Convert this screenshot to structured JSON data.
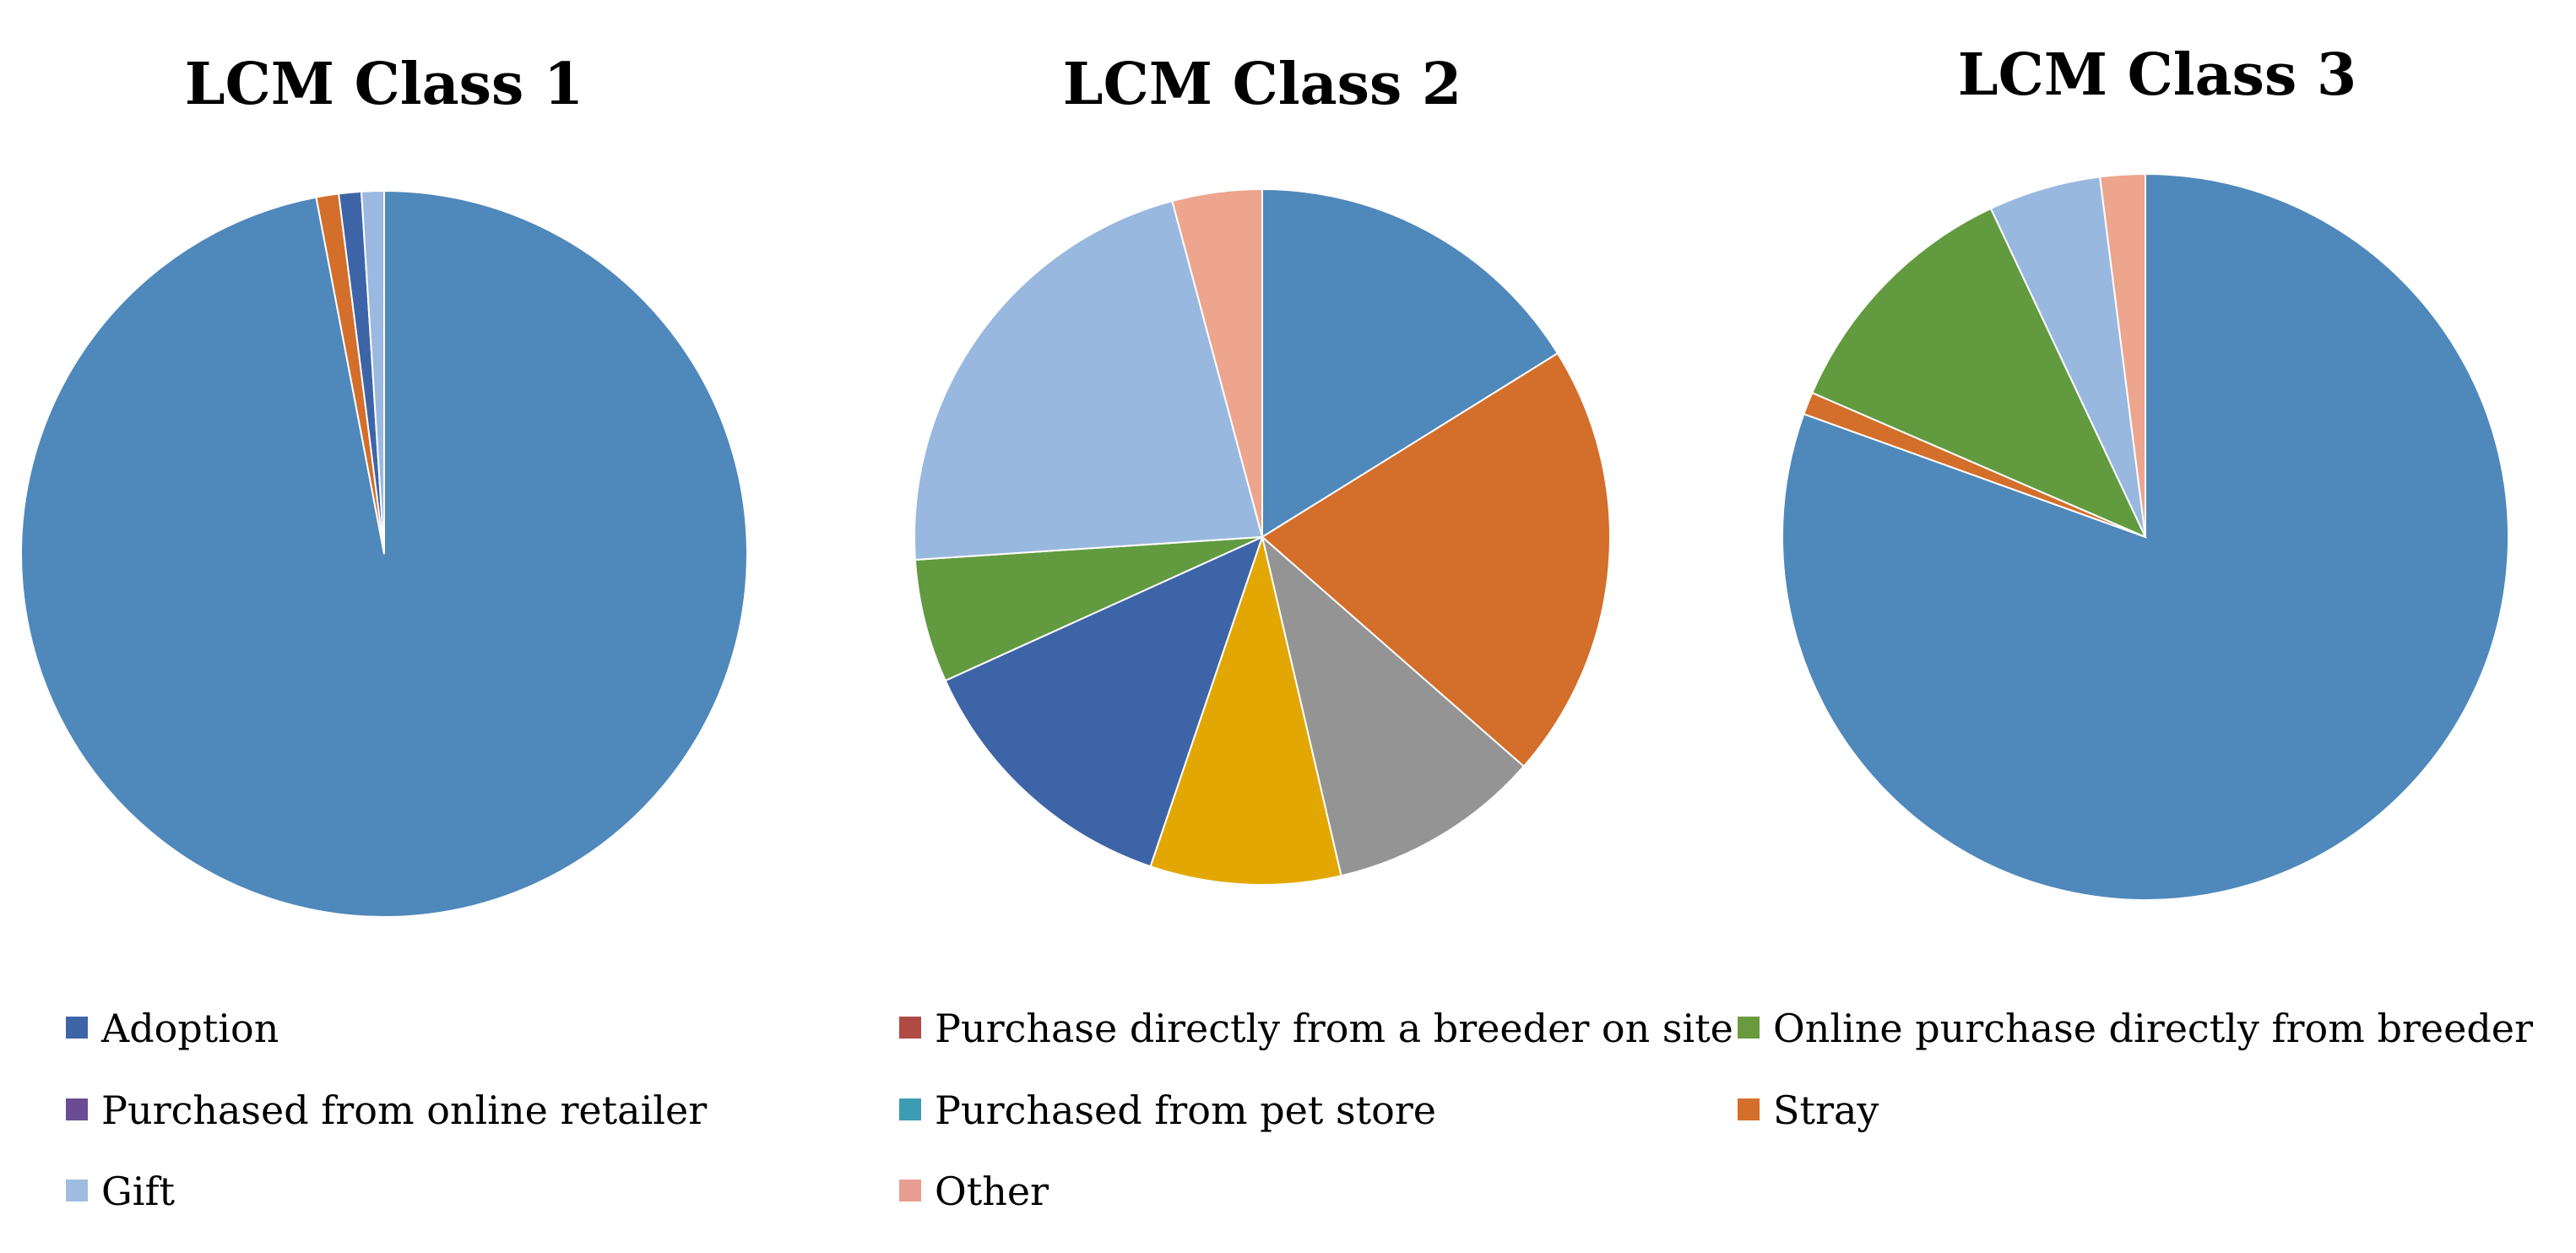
{
  "legend_categories": [
    "Adoption",
    "Purchase directly from a breeder on site",
    "Online purchase directly from breeder",
    "Purchased from online retailer",
    "Purchased from pet store",
    "Stray",
    "Gift",
    "Other"
  ],
  "legend_colors": [
    "#3E64A8",
    "#B04A45",
    "#6B9A3E",
    "#6A4C93",
    "#3C9CB3",
    "#D36E2B",
    "#A0BCE0",
    "#E89E93"
  ],
  "chart_data": [
    {
      "type": "pie",
      "title": "LCM Class 1",
      "slices": [
        {
          "label": "",
          "value": 97.0,
          "color": "#4F88BB"
        },
        {
          "label": "",
          "value": 1.0,
          "color": "#D36E2B"
        },
        {
          "label": "",
          "value": 1.0,
          "color": "#3E64A8"
        },
        {
          "label": "",
          "value": 1.0,
          "color": "#9BB9E0"
        }
      ]
    },
    {
      "type": "pie",
      "title": "LCM Class 2",
      "slices": [
        {
          "label": "",
          "value": 15.5,
          "color": "#4F88BB"
        },
        {
          "label": "",
          "value": 19.5,
          "color": "#D36E2B"
        },
        {
          "label": "",
          "value": 9.5,
          "color": "#949494"
        },
        {
          "label": "",
          "value": 8.5,
          "color": "#E2A703"
        },
        {
          "label": "",
          "value": 12.5,
          "color": "#3E64A8"
        },
        {
          "label": "",
          "value": 5.5,
          "color": "#629A40"
        },
        {
          "label": "",
          "value": 21.0,
          "color": "#99B8DF"
        },
        {
          "label": "",
          "value": 4.0,
          "color": "#EDA58D"
        }
      ]
    },
    {
      "type": "pie",
      "title": "LCM Class 3",
      "slices": [
        {
          "label": "",
          "value": 80.5,
          "color": "#4F88BB"
        },
        {
          "label": "",
          "value": 1.0,
          "color": "#D36E2B"
        },
        {
          "label": "",
          "value": 11.5,
          "color": "#629A40"
        },
        {
          "label": "",
          "value": 5.0,
          "color": "#99B8DF"
        },
        {
          "label": "",
          "value": 2.0,
          "color": "#EDA58D"
        }
      ]
    }
  ]
}
